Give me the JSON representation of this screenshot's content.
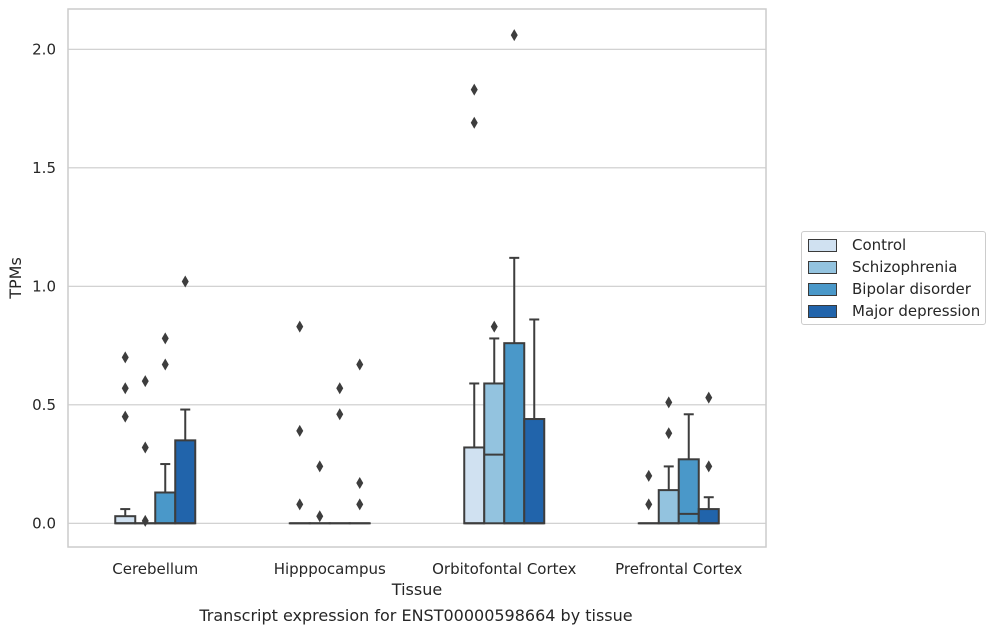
{
  "caption": "Transcript expression for ENST00000598664 by tissue",
  "legend": {
    "items": [
      {
        "label": "Control",
        "color": "#d0e1f1"
      },
      {
        "label": "Schizophrenia",
        "color": "#93c3df"
      },
      {
        "label": "Bipolar disorder",
        "color": "#4a98c9"
      },
      {
        "label": "Major depression",
        "color": "#2164ab"
      }
    ]
  },
  "chart_data": {
    "type": "box",
    "title": "",
    "xlabel": "Tissue",
    "ylabel": "TPMs",
    "ylim": [
      -0.1,
      2.17
    ],
    "yticks": [
      "0.0",
      "0.5",
      "1.0",
      "1.5",
      "2.0"
    ],
    "grid": true,
    "legend_position": "right",
    "categories": [
      "Cerebellum",
      "Hipppocampus",
      "Orbitofontal Cortex",
      "Prefrontal Cortex"
    ],
    "series": [
      {
        "name": "Control",
        "color": "#d0e1f1",
        "boxes": [
          {
            "q1": 0.0,
            "median": 0.0,
            "q3": 0.03,
            "whisker_low": 0.0,
            "whisker_high": 0.06,
            "outliers": [
              0.45,
              0.57,
              0.7
            ]
          },
          {
            "q1": 0.0,
            "median": 0.0,
            "q3": 0.0,
            "whisker_low": 0.0,
            "whisker_high": 0.0,
            "outliers": [
              0.08,
              0.39,
              0.83
            ]
          },
          {
            "q1": 0.0,
            "median": 0.0,
            "q3": 0.32,
            "whisker_low": 0.0,
            "whisker_high": 0.59,
            "outliers": [
              1.69,
              1.83
            ]
          },
          {
            "q1": 0.0,
            "median": 0.0,
            "q3": 0.0,
            "whisker_low": 0.0,
            "whisker_high": 0.0,
            "outliers": [
              0.08,
              0.2
            ]
          }
        ]
      },
      {
        "name": "Schizophrenia",
        "color": "#93c3df",
        "boxes": [
          {
            "q1": 0.0,
            "median": 0.0,
            "q3": 0.0,
            "whisker_low": 0.0,
            "whisker_high": 0.0,
            "outliers": [
              0.01,
              0.32,
              0.6
            ]
          },
          {
            "q1": 0.0,
            "median": 0.0,
            "q3": 0.0,
            "whisker_low": 0.0,
            "whisker_high": 0.0,
            "outliers": [
              0.03,
              0.24
            ]
          },
          {
            "q1": 0.0,
            "median": 0.29,
            "q3": 0.59,
            "whisker_low": 0.0,
            "whisker_high": 0.78,
            "outliers": [
              0.83
            ]
          },
          {
            "q1": 0.0,
            "median": 0.0,
            "q3": 0.14,
            "whisker_low": 0.0,
            "whisker_high": 0.24,
            "outliers": [
              0.38,
              0.51
            ]
          }
        ]
      },
      {
        "name": "Bipolar disorder",
        "color": "#4a98c9",
        "boxes": [
          {
            "q1": 0.0,
            "median": 0.0,
            "q3": 0.13,
            "whisker_low": 0.0,
            "whisker_high": 0.25,
            "outliers": [
              0.67,
              0.78
            ]
          },
          {
            "q1": 0.0,
            "median": 0.0,
            "q3": 0.0,
            "whisker_low": 0.0,
            "whisker_high": 0.0,
            "outliers": [
              0.46,
              0.57
            ]
          },
          {
            "q1": 0.0,
            "median": 0.0,
            "q3": 0.76,
            "whisker_low": 0.0,
            "whisker_high": 1.12,
            "outliers": [
              2.06
            ]
          },
          {
            "q1": 0.0,
            "median": 0.04,
            "q3": 0.27,
            "whisker_low": 0.0,
            "whisker_high": 0.46,
            "outliers": []
          }
        ]
      },
      {
        "name": "Major depression",
        "color": "#2164ab",
        "boxes": [
          {
            "q1": 0.0,
            "median": 0.0,
            "q3": 0.35,
            "whisker_low": 0.0,
            "whisker_high": 0.48,
            "outliers": [
              1.02
            ]
          },
          {
            "q1": 0.0,
            "median": 0.0,
            "q3": 0.0,
            "whisker_low": 0.0,
            "whisker_high": 0.0,
            "outliers": [
              0.08,
              0.17,
              0.67
            ]
          },
          {
            "q1": 0.0,
            "median": 0.0,
            "q3": 0.44,
            "whisker_low": 0.0,
            "whisker_high": 0.86,
            "outliers": []
          },
          {
            "q1": 0.0,
            "median": 0.0,
            "q3": 0.06,
            "whisker_low": 0.0,
            "whisker_high": 0.11,
            "outliers": [
              0.24,
              0.53
            ]
          }
        ]
      }
    ]
  }
}
